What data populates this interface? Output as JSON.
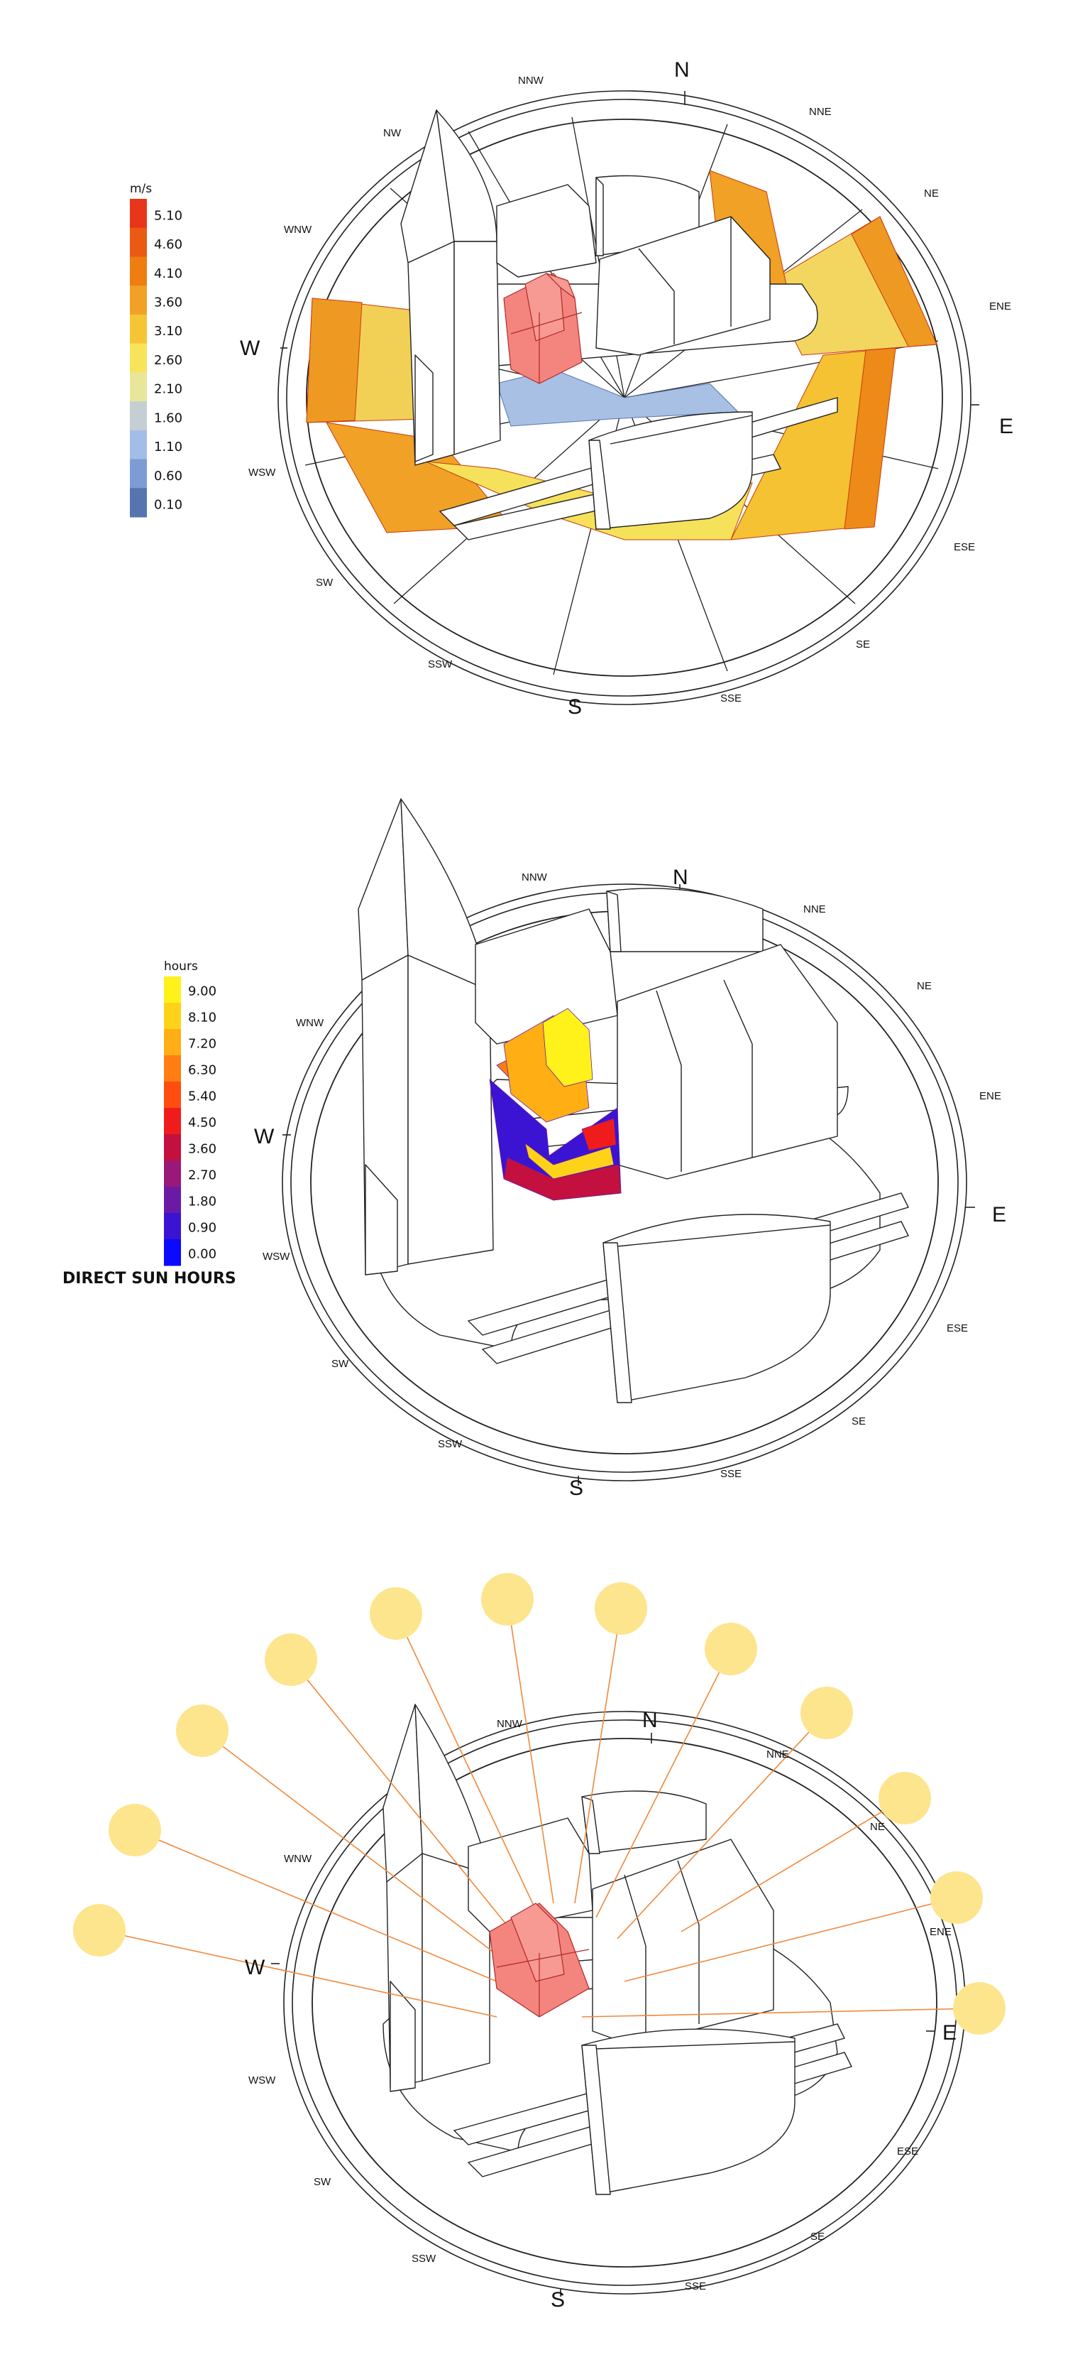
{
  "diagrams": [
    {
      "id": "wind",
      "compass": {
        "cardinal": {
          "N": "N",
          "E": "E",
          "S": "S",
          "W": "W"
        },
        "inter": [
          "NNE",
          "NE",
          "ENE",
          "ESE",
          "SE",
          "SSE",
          "SSW",
          "SW",
          "WSW",
          "WNW",
          "NW",
          "NNW"
        ]
      },
      "legend": {
        "unit": "m/s",
        "values": [
          "5.10",
          "4.60",
          "4.10",
          "3.60",
          "3.10",
          "2.60",
          "2.10",
          "1.60",
          "1.10",
          "0.60",
          "0.10"
        ],
        "colors": [
          "#e8361a",
          "#ea5a12",
          "#ee7d12",
          "#f0a126",
          "#f5c535",
          "#f8e45a",
          "#e8e69a",
          "#c4cfd4",
          "#a2bde8",
          "#7d9bd4",
          "#5675b0"
        ]
      }
    },
    {
      "id": "sun-hours",
      "compass": {
        "cardinal": {
          "N": "N",
          "E": "E",
          "S": "S",
          "W": "W"
        },
        "inter": [
          "NNE",
          "NE",
          "ENE",
          "ESE",
          "SE",
          "SSE",
          "SSW",
          "SW",
          "WSW",
          "WNW",
          "NNW"
        ]
      },
      "legend": {
        "unit": "hours",
        "title": "DIRECT SUN HOURS",
        "values": [
          "9.00",
          "8.10",
          "7.20",
          "6.30",
          "5.40",
          "4.50",
          "3.60",
          "2.70",
          "1.80",
          "0.90",
          "0.00"
        ],
        "colors": [
          "#fff21a",
          "#ffd21a",
          "#ffae14",
          "#ff7d12",
          "#ff4d10",
          "#f01c1c",
          "#c4103e",
          "#9a1878",
          "#6a1aa4",
          "#3a14d2",
          "#0a0aff"
        ]
      }
    },
    {
      "id": "sun-path",
      "compass": {
        "cardinal": {
          "N": "N",
          "E": "E",
          "S": "S",
          "W": "W"
        },
        "inter": [
          "NNE",
          "NE",
          "ENE",
          "ESE",
          "SE",
          "SSE",
          "SSW",
          "SW",
          "WSW",
          "WNW",
          "NNW"
        ]
      },
      "colors": {
        "sun": "#fde58e",
        "ray": "#f0883c",
        "building": "#f4857e"
      }
    }
  ]
}
